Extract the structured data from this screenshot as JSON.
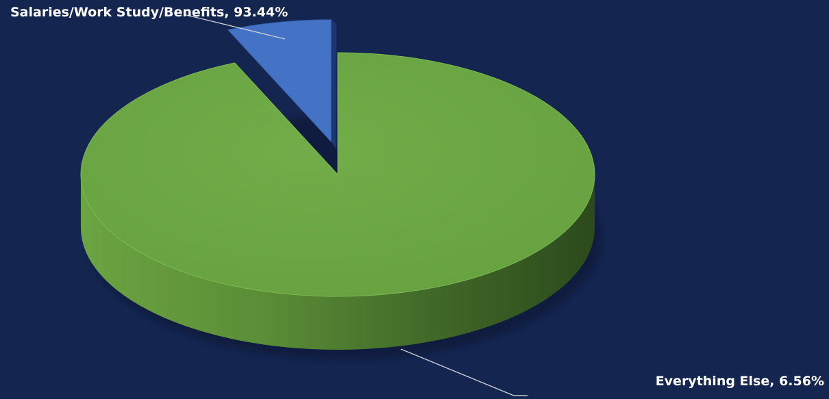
{
  "chart_data": {
    "type": "pie",
    "title": "",
    "style": "3d-exploded",
    "legend": "none",
    "slices": [
      {
        "label": "Salaries/Work Study/Benefits",
        "percent": 93.44,
        "color": "#6ea846",
        "data_label": "Salaries/Work Study/Benefits, 93.44%"
      },
      {
        "label": "Everything Else",
        "percent": 6.56,
        "color": "#4472c4",
        "data_label": "Everything Else, 6.56%",
        "exploded": true
      }
    ]
  }
}
